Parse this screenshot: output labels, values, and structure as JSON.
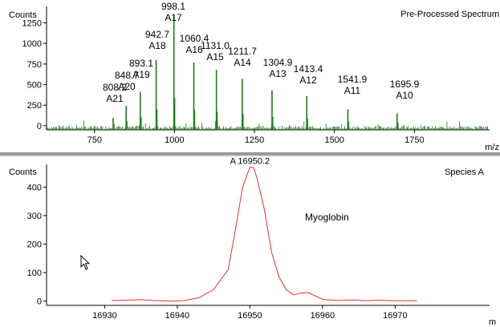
{
  "chart_data": [
    {
      "type": "bar",
      "title": "Pre-Processed Spectrum",
      "title_color": "#1f7a1f",
      "ylabel": "Counts",
      "xlabel": "m/z",
      "xlim": [
        600,
        1985
      ],
      "ylim": [
        -50,
        1450
      ],
      "xticks": [
        750,
        1000,
        1250,
        1500,
        1750
      ],
      "yticks": [
        0,
        250,
        500,
        750,
        1000,
        1250
      ],
      "bar_color": "#1f7a1f",
      "grid": false,
      "peaks": [
        {
          "x": 808.2,
          "y": 95
        },
        {
          "x": 848.7,
          "y": 240
        },
        {
          "x": 893.1,
          "y": 410
        },
        {
          "x": 942.7,
          "y": 800
        },
        {
          "x": 998.1,
          "y": 1340
        },
        {
          "x": 1060.4,
          "y": 770
        },
        {
          "x": 1131.0,
          "y": 680
        },
        {
          "x": 1211.7,
          "y": 570
        },
        {
          "x": 1304.9,
          "y": 430
        },
        {
          "x": 1413.4,
          "y": 360
        },
        {
          "x": 1541.9,
          "y": 200
        },
        {
          "x": 1695.9,
          "y": 150
        }
      ],
      "annotations": [
        {
          "mz": "808.2",
          "ion": "A21"
        },
        {
          "mz": "848.7",
          "ion": "A20"
        },
        {
          "mz": "893.1",
          "ion": "A19"
        },
        {
          "mz": "942.7",
          "ion": "A18"
        },
        {
          "mz": "998.1",
          "ion": "A17"
        },
        {
          "mz": "1060.4",
          "ion": "A16"
        },
        {
          "mz": "1131.0",
          "ion": "A15"
        },
        {
          "mz": "1211.7",
          "ion": "A14"
        },
        {
          "mz": "1304.9",
          "ion": "A13"
        },
        {
          "mz": "1413.4",
          "ion": "A12"
        },
        {
          "mz": "1541.9",
          "ion": "A11"
        },
        {
          "mz": "1695.9",
          "ion": "A10"
        }
      ]
    },
    {
      "type": "line",
      "title": "Species A",
      "title_color": "#e8312b",
      "ylabel": "Counts",
      "xlabel": "m",
      "xlim": [
        16922,
        16983
      ],
      "ylim": [
        -15,
        480
      ],
      "xticks": [
        16930,
        16940,
        16950,
        16960,
        16970
      ],
      "yticks": [
        0,
        100,
        200,
        300,
        400
      ],
      "line_color": "#e8312b",
      "grid": false,
      "annotation": "Myoglobin",
      "peak_label": "A 16950.2",
      "series": [
        {
          "x": [
            16931,
            16933,
            16935,
            16937,
            16939,
            16941,
            16943,
            16945,
            16947,
            16948,
            16949,
            16950,
            16950.5,
            16951,
            16952,
            16953,
            16954,
            16955,
            16956,
            16957,
            16958,
            16959,
            16960,
            16962,
            16964,
            16966,
            16968,
            16970,
            16973
          ],
          "y": [
            2,
            3,
            5,
            2,
            0,
            2,
            12,
            40,
            110,
            250,
            400,
            470,
            468,
            430,
            320,
            170,
            85,
            40,
            22,
            28,
            30,
            18,
            6,
            2,
            4,
            1,
            3,
            1,
            2
          ]
        }
      ]
    }
  ]
}
